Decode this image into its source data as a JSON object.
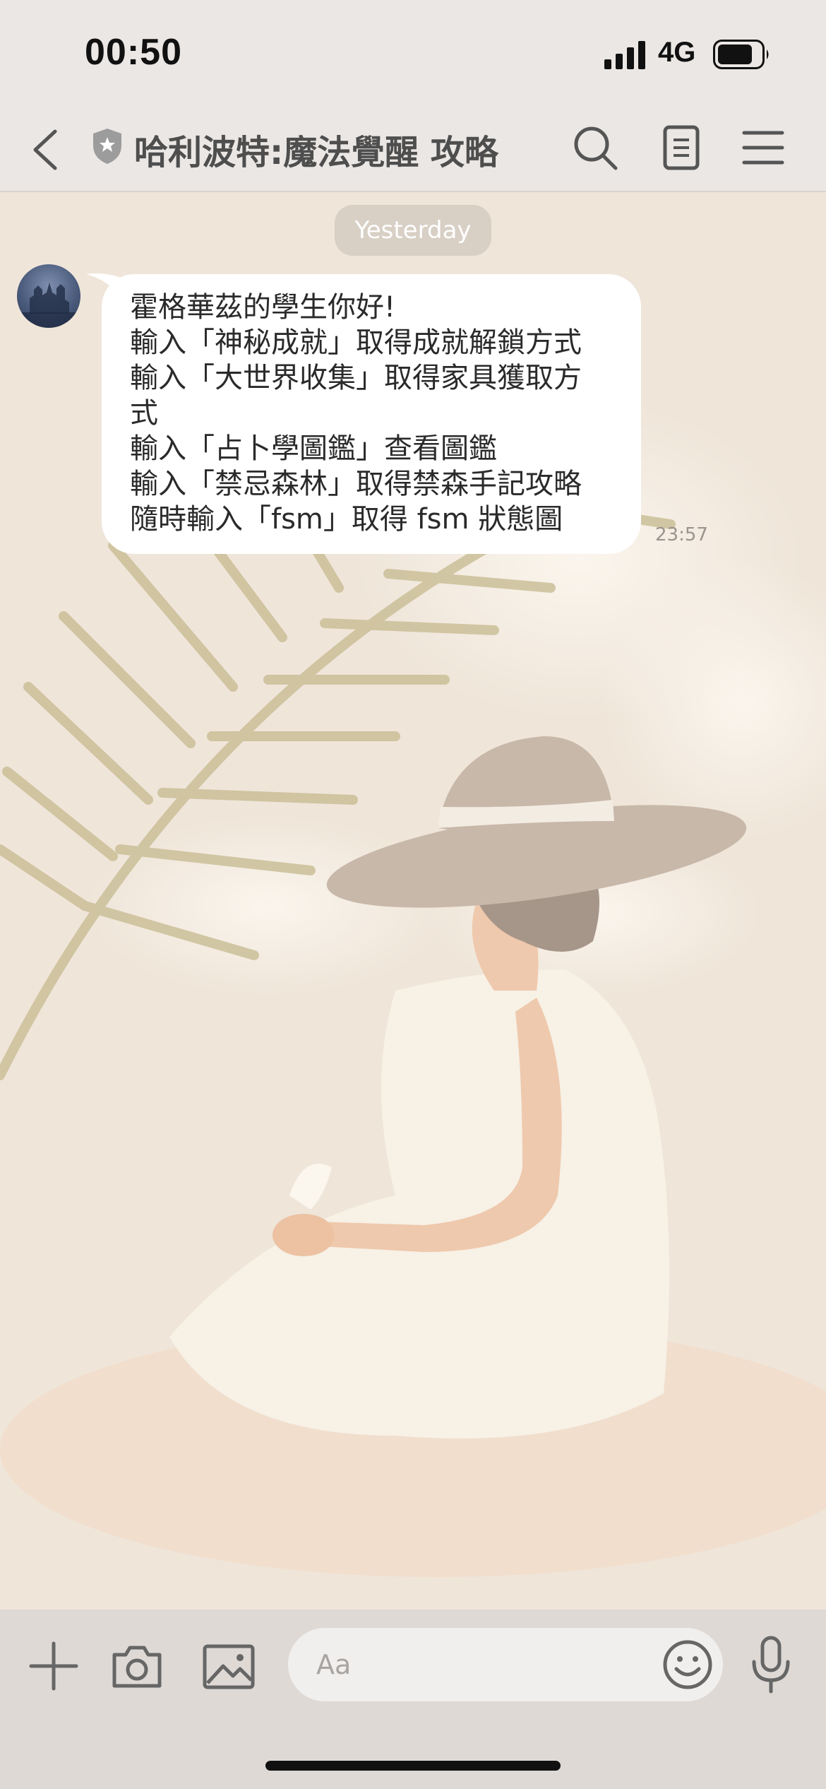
{
  "status_bar": {
    "time": "00:50",
    "network": "4G",
    "icons": [
      "signal-icon",
      "battery-icon"
    ]
  },
  "nav": {
    "title": "哈利波特:魔法覺醒 攻略",
    "icons": [
      "back-icon",
      "shield-star-icon",
      "search-icon",
      "notes-icon",
      "menu-icon"
    ]
  },
  "chat": {
    "date_label": "Yesterday",
    "message": {
      "lines": [
        "霍格華茲的學生你好!",
        "輸入「神秘成就」取得成就解鎖方式",
        "輸入「大世界收集」取得家具獲取方",
        "式",
        "輸入「占卜學圖鑑」查看圖鑑",
        "輸入「禁忌森林」取得禁森手記攻略",
        "隨時輸入「fsm」取得 fsm 狀態圖"
      ],
      "time": "23:57"
    }
  },
  "input_bar": {
    "placeholder": "Aa",
    "icons": [
      "plus-icon",
      "camera-icon",
      "image-icon",
      "emoji-icon",
      "microphone-icon"
    ]
  },
  "colors": {
    "bar_background": "#ebe7e4",
    "chat_background": "#efe5d9",
    "bubble": "#ffffff",
    "input_bar": "#ded9d5"
  }
}
